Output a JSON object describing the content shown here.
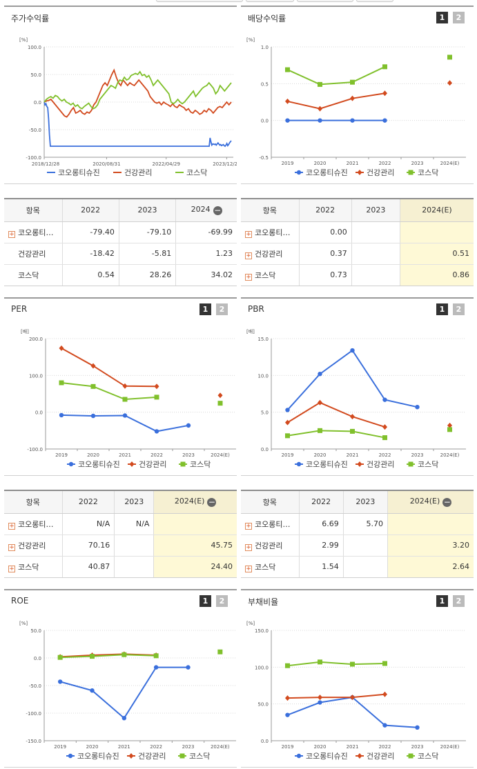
{
  "colors": {
    "s1": "#3a6fdc",
    "s2": "#d24a1e",
    "s3": "#80c02c"
  },
  "legend": [
    "코오롱티슈진",
    "건강관리",
    "코스닥"
  ],
  "buttons": {
    "one": "1",
    "two": "2"
  },
  "charts": {
    "stock": {
      "title": "주가수익률",
      "unit": "[%]",
      "ylim": [
        -100.0,
        100.0
      ],
      "yticks": [
        "100.0",
        "50.0",
        "0.0",
        "-50.0",
        "-100.0"
      ],
      "xticks": [
        "2018/12/28",
        "2020/08/31",
        "2022/04/29",
        "2023/12/28"
      ]
    },
    "dividend": {
      "title": "배당수익률",
      "unit": "[%]",
      "ylim": [
        -0.5,
        1.0
      ],
      "yticks": [
        "1.0",
        "0.5",
        "0.0",
        "-0.5"
      ],
      "categories": [
        "2019",
        "2020",
        "2021",
        "2022",
        "2023",
        "2024(E)"
      ]
    },
    "per": {
      "title": "PER",
      "unit": "[배]",
      "ylim": [
        -100.0,
        200.0
      ],
      "yticks": [
        "200.0",
        "100.0",
        "0.0",
        "-100.0"
      ],
      "categories": [
        "2019",
        "2020",
        "2021",
        "2022",
        "2023",
        "2024(E)"
      ]
    },
    "pbr": {
      "title": "PBR",
      "unit": "[배]",
      "ylim": [
        0.0,
        15.0
      ],
      "yticks": [
        "15.0",
        "10.0",
        "5.0",
        "0.0"
      ],
      "categories": [
        "2019",
        "2020",
        "2021",
        "2022",
        "2023",
        "2024(E)"
      ]
    },
    "roe": {
      "title": "ROE",
      "unit": "[%]",
      "ylim": [
        -150.0,
        50.0
      ],
      "yticks": [
        "50.0",
        "0.0",
        "-50.0",
        "-100.0",
        "-150.0"
      ],
      "categories": [
        "2019",
        "2020",
        "2021",
        "2022",
        "2023",
        "2024(E)"
      ]
    },
    "debt": {
      "title": "부채비율",
      "unit": "[%]",
      "ylim": [
        0.0,
        150.0
      ],
      "yticks": [
        "150.0",
        "100.0",
        "50.0",
        "0.0"
      ],
      "categories": [
        "2019",
        "2020",
        "2021",
        "2022",
        "2023",
        "2024(E)"
      ]
    }
  },
  "chart_data": [
    {
      "type": "line",
      "title": "주가수익률",
      "ylabel": "[%]",
      "x_range": [
        "2018/12/28",
        "2024/05"
      ],
      "ylim": [
        -100,
        100
      ],
      "series": [
        {
          "name": "코오롱티슈진",
          "values": [
            0,
            -5,
            -3,
            -8,
            -10,
            -30,
            -60,
            -80,
            -80,
            -80,
            -80,
            -80,
            -80,
            -80,
            -80,
            -80,
            -80,
            -80,
            -80,
            -80,
            -80,
            -80,
            -80,
            -80,
            -80,
            -80,
            -80,
            -80,
            -80,
            -80,
            -80,
            -80,
            -80,
            -80,
            -80,
            -80,
            -80,
            -80,
            -80,
            -80,
            -80,
            -80,
            -80,
            -80,
            -80,
            -80,
            -80,
            -80,
            -80,
            -80,
            -80,
            -80,
            -80,
            -80,
            -80,
            -80,
            -80,
            -80,
            -80,
            -80,
            -80,
            -80,
            -80,
            -80,
            -80,
            -80,
            -80,
            -80,
            -80,
            -80,
            -80,
            -80,
            -80,
            -80,
            -80,
            -80,
            -80,
            -80,
            -80,
            -80,
            -80,
            -80,
            -80,
            -80,
            -80,
            -80,
            -80,
            -80,
            -80,
            -80,
            -80,
            -80,
            -80,
            -80,
            -80,
            -80,
            -80,
            -80,
            -80,
            -80,
            -80,
            -80,
            -80,
            -80,
            -80,
            -80,
            -80,
            -80,
            -80,
            -80,
            -80,
            -80,
            -80,
            -80,
            -80,
            -80,
            -80,
            -80,
            -80,
            -80,
            -80,
            -80,
            -80,
            -80,
            -80,
            -80,
            -80,
            -80,
            -80,
            -80,
            -80,
            -80,
            -80,
            -80,
            -80,
            -80,
            -80,
            -80,
            -80,
            -80,
            -80,
            -80,
            -80,
            -80,
            -80,
            -80,
            -80,
            -80,
            -80,
            -80,
            -80,
            -80,
            -80,
            -80,
            -80,
            -80,
            -80,
            -80,
            -80,
            -80,
            -80,
            -80,
            -80,
            -80,
            -80,
            -80,
            -80,
            -80,
            -80,
            -80,
            -80,
            -80,
            -80,
            -80,
            -80,
            -80,
            -80,
            -80,
            -80,
            -80,
            -80,
            -80,
            -80,
            -80,
            -80,
            -80,
            -80,
            -80,
            -65,
            -72,
            -78,
            -76,
            -76,
            -77,
            -76,
            -78,
            -76,
            -74,
            -76,
            -78,
            -77,
            -79,
            -78,
            -77,
            -79,
            -80,
            -78,
            -75,
            -79,
            -77,
            -74,
            -72,
            -70
          ]
        },
        {
          "name": "건강관리",
          "values": [
            0,
            2,
            3,
            5,
            0,
            -5,
            -10,
            -15,
            -20,
            -25,
            -27,
            -22,
            -15,
            -10,
            -20,
            -18,
            -15,
            -20,
            -22,
            -18,
            -20,
            -15,
            -5,
            0,
            10,
            20,
            30,
            35,
            30,
            40,
            50,
            58,
            45,
            35,
            30,
            40,
            35,
            30,
            35,
            32,
            30,
            35,
            40,
            35,
            30,
            25,
            20,
            10,
            5,
            0,
            -2,
            0,
            -5,
            0,
            -3,
            -5,
            -8,
            -3,
            -8,
            -10,
            -5,
            -8,
            -10,
            -15,
            -12,
            -18,
            -20,
            -15,
            -18,
            -22,
            -20,
            -15,
            -18,
            -12,
            -15,
            -20,
            -15,
            -10,
            -8,
            -10,
            -5,
            0,
            -5,
            0
          ]
        },
        {
          "name": "코스닥",
          "values": [
            0,
            5,
            8,
            10,
            7,
            12,
            10,
            5,
            2,
            5,
            0,
            -2,
            -5,
            -2,
            -8,
            -5,
            -10,
            -12,
            -8,
            -5,
            -2,
            -8,
            -12,
            -10,
            -5,
            5,
            10,
            15,
            20,
            25,
            30,
            28,
            25,
            35,
            40,
            38,
            45,
            40,
            42,
            48,
            50,
            52,
            50,
            55,
            48,
            50,
            45,
            48,
            40,
            30,
            35,
            40,
            35,
            30,
            25,
            20,
            15,
            0,
            -3,
            0,
            5,
            0,
            -3,
            0,
            5,
            10,
            15,
            20,
            10,
            15,
            20,
            25,
            28,
            30,
            35,
            30,
            25,
            15,
            20,
            30,
            25,
            20,
            25,
            30,
            35
          ]
        }
      ]
    },
    {
      "type": "line",
      "title": "배당수익률",
      "ylabel": "[%]",
      "categories": [
        "2019",
        "2020",
        "2021",
        "2022",
        "2023",
        "2024(E)"
      ],
      "ylim": [
        -0.5,
        1.0
      ],
      "series": [
        {
          "name": "코오롱티슈진",
          "values": [
            0.0,
            0.0,
            0.0,
            0.0,
            null,
            null
          ]
        },
        {
          "name": "건강관리",
          "values": [
            0.26,
            0.16,
            0.3,
            0.37,
            null,
            0.51
          ]
        },
        {
          "name": "코스닥",
          "values": [
            0.69,
            0.49,
            0.52,
            0.73,
            null,
            0.86
          ]
        }
      ]
    },
    {
      "type": "line",
      "title": "PER",
      "ylabel": "[배]",
      "categories": [
        "2019",
        "2020",
        "2021",
        "2022",
        "2023",
        "2024(E)"
      ],
      "ylim": [
        -100,
        200
      ],
      "series": [
        {
          "name": "코오롱티슈진",
          "values": [
            -8,
            -10,
            -9,
            -52,
            -36,
            null
          ]
        },
        {
          "name": "건강관리",
          "values": [
            174,
            126,
            71,
            70.16,
            null,
            45.75
          ]
        },
        {
          "name": "코스닥",
          "values": [
            80,
            70,
            35,
            40.87,
            null,
            24.4
          ]
        }
      ]
    },
    {
      "type": "line",
      "title": "PBR",
      "ylabel": "[배]",
      "categories": [
        "2019",
        "2020",
        "2021",
        "2022",
        "2023",
        "2024(E)"
      ],
      "ylim": [
        0,
        15
      ],
      "series": [
        {
          "name": "코오롱티슈진",
          "values": [
            5.3,
            10.2,
            13.4,
            6.69,
            5.7,
            null
          ]
        },
        {
          "name": "건강관리",
          "values": [
            3.6,
            6.3,
            4.4,
            2.99,
            null,
            3.2
          ]
        },
        {
          "name": "코스닥",
          "values": [
            1.8,
            2.5,
            2.4,
            1.54,
            null,
            2.64
          ]
        }
      ]
    },
    {
      "type": "line",
      "title": "ROE",
      "ylabel": "[%]",
      "categories": [
        "2019",
        "2020",
        "2021",
        "2022",
        "2023",
        "2024(E)"
      ],
      "ylim": [
        -150,
        50
      ],
      "series": [
        {
          "name": "코오롱티슈진",
          "values": [
            -43,
            -59,
            -109,
            -17,
            -17,
            null
          ]
        },
        {
          "name": "건강관리",
          "values": [
            2,
            5,
            7,
            5,
            null,
            null
          ]
        },
        {
          "name": "코스닥",
          "values": [
            1,
            3,
            6,
            4,
            null,
            11
          ]
        }
      ]
    },
    {
      "type": "line",
      "title": "부채비율",
      "ylabel": "[%]",
      "categories": [
        "2019",
        "2020",
        "2021",
        "2022",
        "2023",
        "2024(E)"
      ],
      "ylim": [
        0,
        150
      ],
      "series": [
        {
          "name": "코오롱티슈진",
          "values": [
            35,
            52,
            59,
            21,
            18,
            null
          ]
        },
        {
          "name": "건강관리",
          "values": [
            58,
            59,
            59,
            63,
            null,
            null
          ]
        },
        {
          "name": "코스닥",
          "values": [
            102,
            107,
            104,
            105,
            null,
            null
          ]
        }
      ]
    }
  ],
  "tables": {
    "stock": {
      "headers": [
        "항목",
        "2022",
        "2023",
        "2024"
      ],
      "rows": [
        {
          "name": "코오롱티…",
          "plus": true,
          "values": [
            "-79.40",
            "-79.10",
            "-69.99"
          ]
        },
        {
          "name": "건강관리",
          "plus": false,
          "values": [
            "-18.42",
            "-5.81",
            "1.23"
          ]
        },
        {
          "name": "코스닥",
          "plus": false,
          "values": [
            "0.54",
            "28.26",
            "34.02"
          ]
        }
      ]
    },
    "dividend": {
      "headers": [
        "항목",
        "2022",
        "2023",
        "2024(E)"
      ],
      "rows": [
        {
          "name": "코오롱티…",
          "plus": true,
          "values": [
            "0.00",
            "",
            ""
          ]
        },
        {
          "name": "건강관리",
          "plus": true,
          "values": [
            "0.37",
            "",
            "0.51"
          ]
        },
        {
          "name": "코스닥",
          "plus": true,
          "values": [
            "0.73",
            "",
            "0.86"
          ]
        }
      ]
    },
    "per": {
      "headers": [
        "항목",
        "2022",
        "2023",
        "2024(E)"
      ],
      "rows": [
        {
          "name": "코오롱티…",
          "plus": true,
          "values": [
            "N/A",
            "N/A",
            ""
          ]
        },
        {
          "name": "건강관리",
          "plus": true,
          "values": [
            "70.16",
            "",
            "45.75"
          ]
        },
        {
          "name": "코스닥",
          "plus": true,
          "values": [
            "40.87",
            "",
            "24.40"
          ]
        }
      ]
    },
    "pbr": {
      "headers": [
        "항목",
        "2022",
        "2023",
        "2024(E)"
      ],
      "rows": [
        {
          "name": "코오롱티…",
          "plus": true,
          "values": [
            "6.69",
            "5.70",
            ""
          ]
        },
        {
          "name": "건강관리",
          "plus": true,
          "values": [
            "2.99",
            "",
            "3.20"
          ]
        },
        {
          "name": "코스닥",
          "plus": true,
          "values": [
            "1.54",
            "",
            "2.64"
          ]
        }
      ]
    }
  }
}
